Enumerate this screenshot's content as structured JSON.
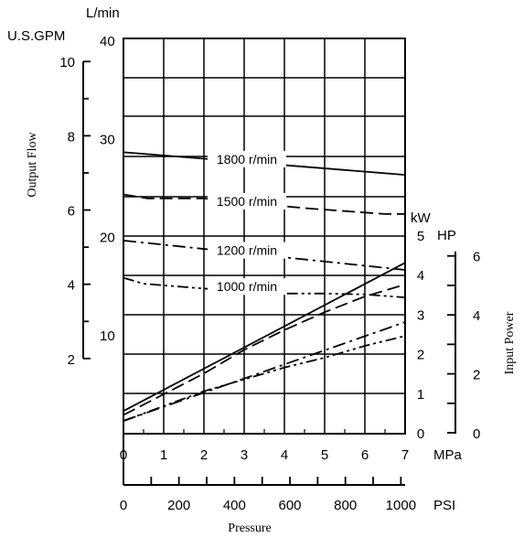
{
  "chart_data": {
    "type": "line",
    "xlabel": "Pressure",
    "x_units": [
      "MPa",
      "PSI"
    ],
    "x_range": [
      0,
      7
    ],
    "x_ticks_mpa": [
      "0",
      "1",
      "2",
      "3",
      "4",
      "5",
      "6",
      "7"
    ],
    "x_ticks_psi": [
      "0",
      "200",
      "400",
      "600",
      "800",
      "1000"
    ],
    "psi_tick_values": [
      0,
      200,
      400,
      600,
      800,
      1000
    ],
    "ylabel_flow": "Output Flow",
    "flow_units": [
      "L/min",
      "U.S.GPM"
    ],
    "flow_range_lmin": [
      0,
      40
    ],
    "flow_ticks_lmin": [
      "10",
      "20",
      "30",
      "40"
    ],
    "flow_tick_values_lmin": [
      10,
      20,
      30,
      40
    ],
    "flow_ticks_gpm": [
      "2",
      "4",
      "6",
      "8",
      "10"
    ],
    "flow_tick_values_gpm": [
      2,
      4,
      6,
      8,
      10
    ],
    "ylabel_power": "Input Power",
    "power_units": [
      "kW",
      "HP"
    ],
    "power_ticks_kw": [
      "0",
      "1",
      "2",
      "3",
      "4",
      "5"
    ],
    "power_ticks_hp": [
      "0",
      "2",
      "4",
      "6"
    ],
    "power_tick_values_hp": [
      0,
      2,
      4,
      6
    ],
    "grid": true,
    "flow_series": [
      {
        "name": "1800 r/min",
        "dash": "solid",
        "x": [
          0,
          7
        ],
        "y": [
          28.6,
          26.3
        ]
      },
      {
        "name": "1500 r/min",
        "dash": "dash",
        "x": [
          0,
          0.6,
          2,
          4.5,
          6.5,
          7
        ],
        "y": [
          24.3,
          23.9,
          23.9,
          22.9,
          22.3,
          22.3
        ]
      },
      {
        "name": "1200 r/min",
        "dash": "dashdot",
        "x": [
          0,
          7
        ],
        "y": [
          19.6,
          16.6
        ]
      },
      {
        "name": "1000 r/min",
        "dash": "dashdotdot",
        "x": [
          0,
          0.5,
          2,
          4,
          5,
          6,
          7
        ],
        "y": [
          15.8,
          15.2,
          14.7,
          14.2,
          14.2,
          14.1,
          13.8
        ]
      }
    ],
    "power_series": [
      {
        "name": "1800 r/min",
        "dash": "solid",
        "x": [
          0,
          7
        ],
        "y": [
          0.55,
          4.3
        ]
      },
      {
        "name": "1500 r/min",
        "dash": "dash",
        "x": [
          0,
          2,
          3,
          4,
          5,
          6,
          7
        ],
        "y": [
          0.45,
          1.5,
          2.1,
          2.6,
          3.05,
          3.45,
          3.75
        ]
      },
      {
        "name": "1200 r/min",
        "dash": "dashdot",
        "x": [
          0,
          7
        ],
        "y": [
          0.3,
          2.8
        ]
      },
      {
        "name": "1000 r/min",
        "dash": "dashdotdot",
        "x": [
          0,
          2,
          4,
          5,
          6,
          7
        ],
        "y": [
          0.3,
          1.05,
          1.65,
          1.9,
          2.2,
          2.45
        ]
      }
    ]
  }
}
